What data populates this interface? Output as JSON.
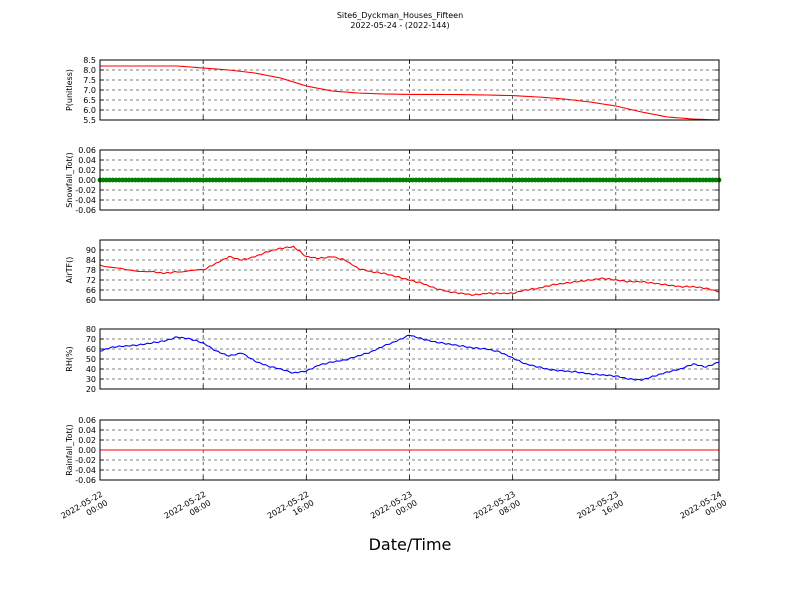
{
  "figure": {
    "title_line1": "Site6_Dyckman_Houses_Fifteen",
    "title_line2": "2022-05-24 - (2022-144)",
    "xlabel": "Date/Time"
  },
  "chart_data": [
    {
      "type": "line",
      "ylabel": "P(unitless)",
      "ylim": [
        5.5,
        8.5
      ],
      "yticks": [
        "5.5",
        "6.0",
        "6.5",
        "7.0",
        "7.5",
        "8.0",
        "8.5"
      ],
      "color": "#ff0000",
      "grid": true,
      "x_hours": [
        0,
        3,
        6,
        8,
        10,
        12,
        14,
        16,
        18,
        20,
        22,
        24,
        26,
        28,
        30,
        32,
        34,
        36,
        38,
        40,
        42,
        44,
        46,
        48
      ],
      "values": [
        8.2,
        8.2,
        8.2,
        8.1,
        8.0,
        7.85,
        7.6,
        7.2,
        6.95,
        6.85,
        6.8,
        6.78,
        6.78,
        6.77,
        6.75,
        6.72,
        6.65,
        6.55,
        6.4,
        6.2,
        5.9,
        5.65,
        5.55,
        5.5
      ]
    },
    {
      "type": "scatter",
      "ylabel": "Snowfall_Tot()",
      "ylim": [
        -0.06,
        0.06
      ],
      "yticks": [
        "-0.06",
        "-0.04",
        "-0.02",
        "0.00",
        "0.02",
        "0.04",
        "0.06"
      ],
      "color": "#008000",
      "grid": true,
      "x_hours": [
        0,
        48
      ],
      "values": [
        0.0,
        0.0
      ]
    },
    {
      "type": "line",
      "ylabel": "AirTF()",
      "ylim": [
        60,
        96
      ],
      "yticks": [
        "60",
        "66",
        "72",
        "78",
        "84",
        "90"
      ],
      "color": "#ff0000",
      "grid": true,
      "x_hours": [
        0,
        2,
        4,
        5,
        6,
        8,
        9,
        10,
        11,
        12,
        13,
        14,
        15,
        16,
        17,
        18,
        19,
        20,
        21,
        22,
        23,
        24,
        25,
        26,
        27,
        28,
        29,
        30,
        31,
        32,
        33,
        34,
        35,
        36,
        37,
        38,
        39,
        40,
        41,
        42,
        43,
        44,
        45,
        46,
        47,
        48
      ],
      "values": [
        81,
        78,
        77,
        76,
        77,
        78,
        82,
        86,
        84,
        86,
        89,
        91,
        92,
        86,
        85,
        86,
        84,
        79,
        77,
        76,
        74,
        72,
        70,
        67,
        65,
        64,
        63,
        64,
        64,
        64,
        66,
        67,
        69,
        70,
        71,
        72,
        73,
        72,
        71,
        71,
        70,
        69,
        68,
        68,
        67,
        65
      ]
    },
    {
      "type": "line",
      "ylabel": "RH(%)",
      "ylim": [
        20,
        80
      ],
      "yticks": [
        "20",
        "30",
        "40",
        "50",
        "60",
        "70",
        "80"
      ],
      "color": "#0000ff",
      "grid": true,
      "x_hours": [
        0,
        1,
        2,
        3,
        4,
        5,
        6,
        7,
        8,
        9,
        10,
        11,
        12,
        13,
        14,
        15,
        16,
        17,
        18,
        19,
        20,
        21,
        22,
        23,
        24,
        25,
        26,
        27,
        28,
        29,
        30,
        31,
        32,
        33,
        34,
        35,
        36,
        37,
        38,
        39,
        40,
        41,
        42,
        43,
        44,
        45,
        46,
        47,
        48
      ],
      "values": [
        58,
        62,
        63,
        64,
        66,
        68,
        72,
        70,
        66,
        58,
        53,
        56,
        48,
        43,
        40,
        36,
        38,
        44,
        47,
        49,
        53,
        57,
        63,
        68,
        74,
        70,
        67,
        65,
        63,
        61,
        60,
        57,
        51,
        45,
        42,
        39,
        38,
        37,
        35,
        34,
        33,
        30,
        29,
        33,
        37,
        40,
        45,
        42,
        47
      ]
    },
    {
      "type": "line",
      "ylabel": "Rainfall_Tot()",
      "ylim": [
        -0.06,
        0.06
      ],
      "yticks": [
        "-0.06",
        "-0.04",
        "-0.02",
        "0.00",
        "0.02",
        "0.04",
        "0.06"
      ],
      "color": "#ff0000",
      "grid": true,
      "x_hours": [
        0,
        48
      ],
      "values": [
        0.0,
        0.0
      ]
    }
  ],
  "x_axis": {
    "range_hours": [
      0,
      48
    ],
    "tick_hours": [
      0,
      8,
      16,
      24,
      32,
      40,
      48
    ],
    "tick_labels": [
      [
        "2022-05-22",
        "00:00"
      ],
      [
        "2022-05-22",
        "08:00"
      ],
      [
        "2022-05-22",
        "16:00"
      ],
      [
        "2022-05-23",
        "00:00"
      ],
      [
        "2022-05-23",
        "08:00"
      ],
      [
        "2022-05-23",
        "16:00"
      ],
      [
        "2022-05-24",
        "00:00"
      ]
    ]
  }
}
